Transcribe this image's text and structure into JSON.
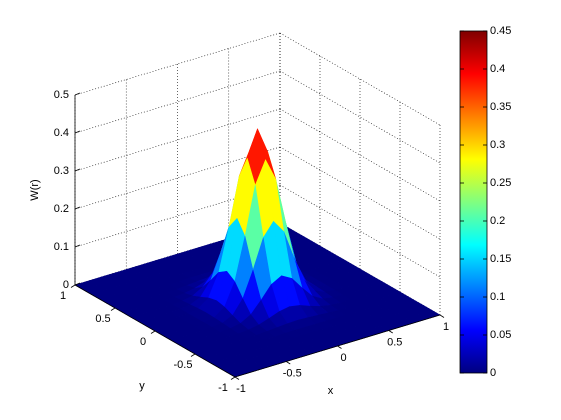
{
  "chart_data": {
    "type": "surface",
    "xlabel": "x",
    "ylabel": "y",
    "zlabel": "W(r)",
    "colormap": "jet",
    "grid": true,
    "xlim": [
      -1,
      1
    ],
    "ylim": [
      -1,
      1
    ],
    "zlim": [
      0,
      0.5
    ],
    "clim": [
      0,
      0.45
    ],
    "xticks": [
      -1,
      -0.5,
      0,
      0.5,
      1
    ],
    "yticks": [
      -1,
      -0.5,
      0,
      0.5,
      1
    ],
    "zticks": [
      0,
      0.1,
      0.2,
      0.3,
      0.4,
      0.5
    ],
    "cticks": [
      0,
      0.05,
      0.1,
      0.15,
      0.2,
      0.25,
      0.3,
      0.35,
      0.4,
      0.45
    ],
    "x": [
      -1,
      -0.9,
      -0.8,
      -0.7,
      -0.6,
      -0.5,
      -0.4,
      -0.3,
      -0.2,
      -0.1,
      0,
      0.1,
      0.2,
      0.3,
      0.4,
      0.5,
      0.6,
      0.7,
      0.8,
      0.9,
      1
    ],
    "y": [
      -1,
      -0.9,
      -0.8,
      -0.7,
      -0.6,
      -0.5,
      -0.4,
      -0.3,
      -0.2,
      -0.1,
      0,
      0.1,
      0.2,
      0.3,
      0.4,
      0.5,
      0.6,
      0.7,
      0.8,
      0.9,
      1
    ],
    "z": [
      [
        0,
        0,
        0,
        0,
        0,
        0,
        0,
        0,
        0,
        0,
        0,
        0,
        0,
        0,
        0,
        0,
        0,
        0,
        0,
        0,
        0
      ],
      [
        0,
        0,
        0,
        0,
        0,
        0,
        0,
        0,
        0,
        0,
        0,
        0,
        0,
        0,
        0,
        0,
        0,
        0,
        0,
        0,
        0
      ],
      [
        0,
        0,
        0,
        0,
        0,
        0,
        0,
        0,
        0,
        0,
        0,
        0,
        0,
        0,
        0,
        0,
        0,
        0,
        0,
        0,
        0
      ],
      [
        0,
        0,
        0,
        0,
        0,
        0,
        0,
        0,
        0,
        0,
        0,
        0,
        0,
        0,
        0,
        0,
        0,
        0,
        0,
        0,
        0
      ],
      [
        0,
        0,
        0,
        0,
        0,
        0,
        0,
        0,
        0.001,
        0.001,
        0.001,
        0.001,
        0.001,
        0,
        0,
        0,
        0,
        0,
        0,
        0,
        0
      ],
      [
        0,
        0,
        0,
        0,
        0,
        0,
        0,
        0.002,
        0.004,
        0.006,
        0.007,
        0.006,
        0.004,
        0.002,
        0,
        0,
        0,
        0,
        0,
        0,
        0
      ],
      [
        0,
        0,
        0,
        0,
        0,
        0,
        0.002,
        0.007,
        0.016,
        0.026,
        0.031,
        0.026,
        0.016,
        0.007,
        0.002,
        0,
        0,
        0,
        0,
        0,
        0
      ],
      [
        0,
        0,
        0,
        0,
        0,
        0.002,
        0.007,
        0.022,
        0.052,
        0.085,
        0.1,
        0.085,
        0.052,
        0.022,
        0.007,
        0.002,
        0,
        0,
        0,
        0,
        0
      ],
      [
        0,
        0,
        0,
        0,
        0.001,
        0.004,
        0.016,
        0.052,
        0.119,
        0.196,
        0.231,
        0.196,
        0.119,
        0.052,
        0.016,
        0.004,
        0.001,
        0,
        0,
        0,
        0
      ],
      [
        0,
        0,
        0,
        0,
        0.001,
        0.006,
        0.026,
        0.085,
        0.196,
        0.322,
        0.381,
        0.322,
        0.196,
        0.085,
        0.026,
        0.006,
        0.001,
        0,
        0,
        0,
        0
      ],
      [
        0,
        0,
        0,
        0,
        0.001,
        0.007,
        0.031,
        0.1,
        0.231,
        0.381,
        0.45,
        0.381,
        0.231,
        0.1,
        0.031,
        0.007,
        0.001,
        0,
        0,
        0,
        0
      ],
      [
        0,
        0,
        0,
        0,
        0.001,
        0.006,
        0.026,
        0.085,
        0.196,
        0.322,
        0.381,
        0.322,
        0.196,
        0.085,
        0.026,
        0.006,
        0.001,
        0,
        0,
        0,
        0
      ],
      [
        0,
        0,
        0,
        0,
        0.001,
        0.004,
        0.016,
        0.052,
        0.119,
        0.196,
        0.231,
        0.196,
        0.119,
        0.052,
        0.016,
        0.004,
        0.001,
        0,
        0,
        0,
        0
      ],
      [
        0,
        0,
        0,
        0,
        0,
        0.002,
        0.007,
        0.022,
        0.052,
        0.085,
        0.1,
        0.085,
        0.052,
        0.022,
        0.007,
        0.002,
        0,
        0,
        0,
        0,
        0
      ],
      [
        0,
        0,
        0,
        0,
        0,
        0,
        0.002,
        0.007,
        0.016,
        0.026,
        0.031,
        0.026,
        0.016,
        0.007,
        0.002,
        0,
        0,
        0,
        0,
        0,
        0
      ],
      [
        0,
        0,
        0,
        0,
        0,
        0,
        0,
        0.002,
        0.004,
        0.006,
        0.007,
        0.006,
        0.004,
        0.002,
        0,
        0,
        0,
        0,
        0,
        0,
        0
      ],
      [
        0,
        0,
        0,
        0,
        0,
        0,
        0,
        0,
        0.001,
        0.001,
        0.001,
        0.001,
        0.001,
        0,
        0,
        0,
        0,
        0,
        0,
        0,
        0
      ],
      [
        0,
        0,
        0,
        0,
        0,
        0,
        0,
        0,
        0,
        0,
        0,
        0,
        0,
        0,
        0,
        0,
        0,
        0,
        0,
        0,
        0
      ],
      [
        0,
        0,
        0,
        0,
        0,
        0,
        0,
        0,
        0,
        0,
        0,
        0,
        0,
        0,
        0,
        0,
        0,
        0,
        0,
        0,
        0
      ],
      [
        0,
        0,
        0,
        0,
        0,
        0,
        0,
        0,
        0,
        0,
        0,
        0,
        0,
        0,
        0,
        0,
        0,
        0,
        0,
        0,
        0
      ],
      [
        0,
        0,
        0,
        0,
        0,
        0,
        0,
        0,
        0,
        0,
        0,
        0,
        0,
        0,
        0,
        0,
        0,
        0,
        0,
        0,
        0
      ]
    ]
  }
}
